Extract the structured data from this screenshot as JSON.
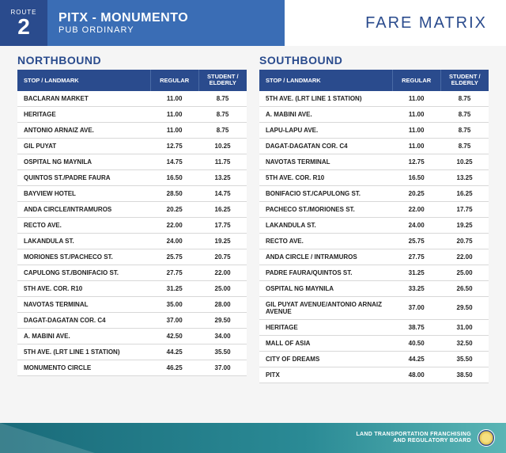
{
  "route": {
    "label": "ROUTE",
    "number": "2"
  },
  "title": {
    "main": "PITX - MONUMENTO",
    "sub": "PUB ORDINARY"
  },
  "matrix_label": "FARE MATRIX",
  "columns": {
    "stop": "STOP / LANDMARK",
    "regular": "REGULAR",
    "discount": "STUDENT / ELDERLY"
  },
  "northbound": {
    "heading": "NORTHBOUND",
    "rows": [
      {
        "stop": "BACLARAN MARKET",
        "reg": "11.00",
        "disc": "8.75"
      },
      {
        "stop": "HERITAGE",
        "reg": "11.00",
        "disc": "8.75"
      },
      {
        "stop": "ANTONIO ARNAIZ AVE.",
        "reg": "11.00",
        "disc": "8.75"
      },
      {
        "stop": "GIL PUYAT",
        "reg": "12.75",
        "disc": "10.25"
      },
      {
        "stop": "OSPITAL NG MAYNILA",
        "reg": "14.75",
        "disc": "11.75"
      },
      {
        "stop": "QUINTOS ST./PADRE FAURA",
        "reg": "16.50",
        "disc": "13.25"
      },
      {
        "stop": "BAYVIEW HOTEL",
        "reg": "28.50",
        "disc": "14.75"
      },
      {
        "stop": "ANDA CIRCLE/INTRAMUROS",
        "reg": "20.25",
        "disc": "16.25"
      },
      {
        "stop": "RECTO AVE.",
        "reg": "22.00",
        "disc": "17.75"
      },
      {
        "stop": "LAKANDULA ST.",
        "reg": "24.00",
        "disc": "19.25"
      },
      {
        "stop": "MORIONES ST./PACHECO ST.",
        "reg": "25.75",
        "disc": "20.75"
      },
      {
        "stop": "CAPULONG ST./BONIFACIO ST.",
        "reg": "27.75",
        "disc": "22.00"
      },
      {
        "stop": "5TH AVE. COR. R10",
        "reg": "31.25",
        "disc": "25.00"
      },
      {
        "stop": "NAVOTAS TERMINAL",
        "reg": "35.00",
        "disc": "28.00"
      },
      {
        "stop": "DAGAT-DAGATAN COR. C4",
        "reg": "37.00",
        "disc": "29.50"
      },
      {
        "stop": "A. MABINI AVE.",
        "reg": "42.50",
        "disc": "34.00"
      },
      {
        "stop": "5TH AVE. (LRT LINE 1 STATION)",
        "reg": "44.25",
        "disc": "35.50"
      },
      {
        "stop": "MONUMENTO CIRCLE",
        "reg": "46.25",
        "disc": "37.00"
      }
    ]
  },
  "southbound": {
    "heading": "SOUTHBOUND",
    "rows": [
      {
        "stop": "5TH AVE. (LRT LINE 1 STATION)",
        "reg": "11.00",
        "disc": "8.75"
      },
      {
        "stop": "A. MABINI AVE.",
        "reg": "11.00",
        "disc": "8.75"
      },
      {
        "stop": "LAPU-LAPU AVE.",
        "reg": "11.00",
        "disc": "8.75"
      },
      {
        "stop": "DAGAT-DAGATAN COR. C4",
        "reg": "11.00",
        "disc": "8.75"
      },
      {
        "stop": "NAVOTAS TERMINAL",
        "reg": "12.75",
        "disc": "10.25"
      },
      {
        "stop": "5TH AVE. COR. R10",
        "reg": "16.50",
        "disc": "13.25"
      },
      {
        "stop": "BONIFACIO ST./CAPULONG ST.",
        "reg": "20.25",
        "disc": "16.25"
      },
      {
        "stop": "PACHECO ST./MORIONES ST.",
        "reg": "22.00",
        "disc": "17.75"
      },
      {
        "stop": "LAKANDULA ST.",
        "reg": "24.00",
        "disc": "19.25"
      },
      {
        "stop": "RECTO AVE.",
        "reg": "25.75",
        "disc": "20.75"
      },
      {
        "stop": "ANDA CIRCLE / INTRAMUROS",
        "reg": "27.75",
        "disc": "22.00"
      },
      {
        "stop": "PADRE FAURA/QUINTOS ST.",
        "reg": "31.25",
        "disc": "25.00"
      },
      {
        "stop": "OSPITAL NG MAYNILA",
        "reg": "33.25",
        "disc": "26.50"
      },
      {
        "stop": "GIL PUYAT AVENUE/ANTONIO ARNAIZ AVENUE",
        "reg": "37.00",
        "disc": "29.50"
      },
      {
        "stop": "HERITAGE",
        "reg": "38.75",
        "disc": "31.00"
      },
      {
        "stop": "MALL OF ASIA",
        "reg": "40.50",
        "disc": "32.50"
      },
      {
        "stop": "CITY OF DREAMS",
        "reg": "44.25",
        "disc": "35.50"
      },
      {
        "stop": "PITX",
        "reg": "48.00",
        "disc": "38.50"
      }
    ]
  },
  "footer": {
    "line1": "LAND TRANSPORTATION FRANCHISING",
    "line2": "AND REGULATORY BOARD"
  },
  "colors": {
    "brand_dark": "#2a4b8d",
    "brand_mid": "#3a6db5",
    "footer_grad_start": "#1a6b7a",
    "footer_grad_end": "#5ab5b5"
  }
}
